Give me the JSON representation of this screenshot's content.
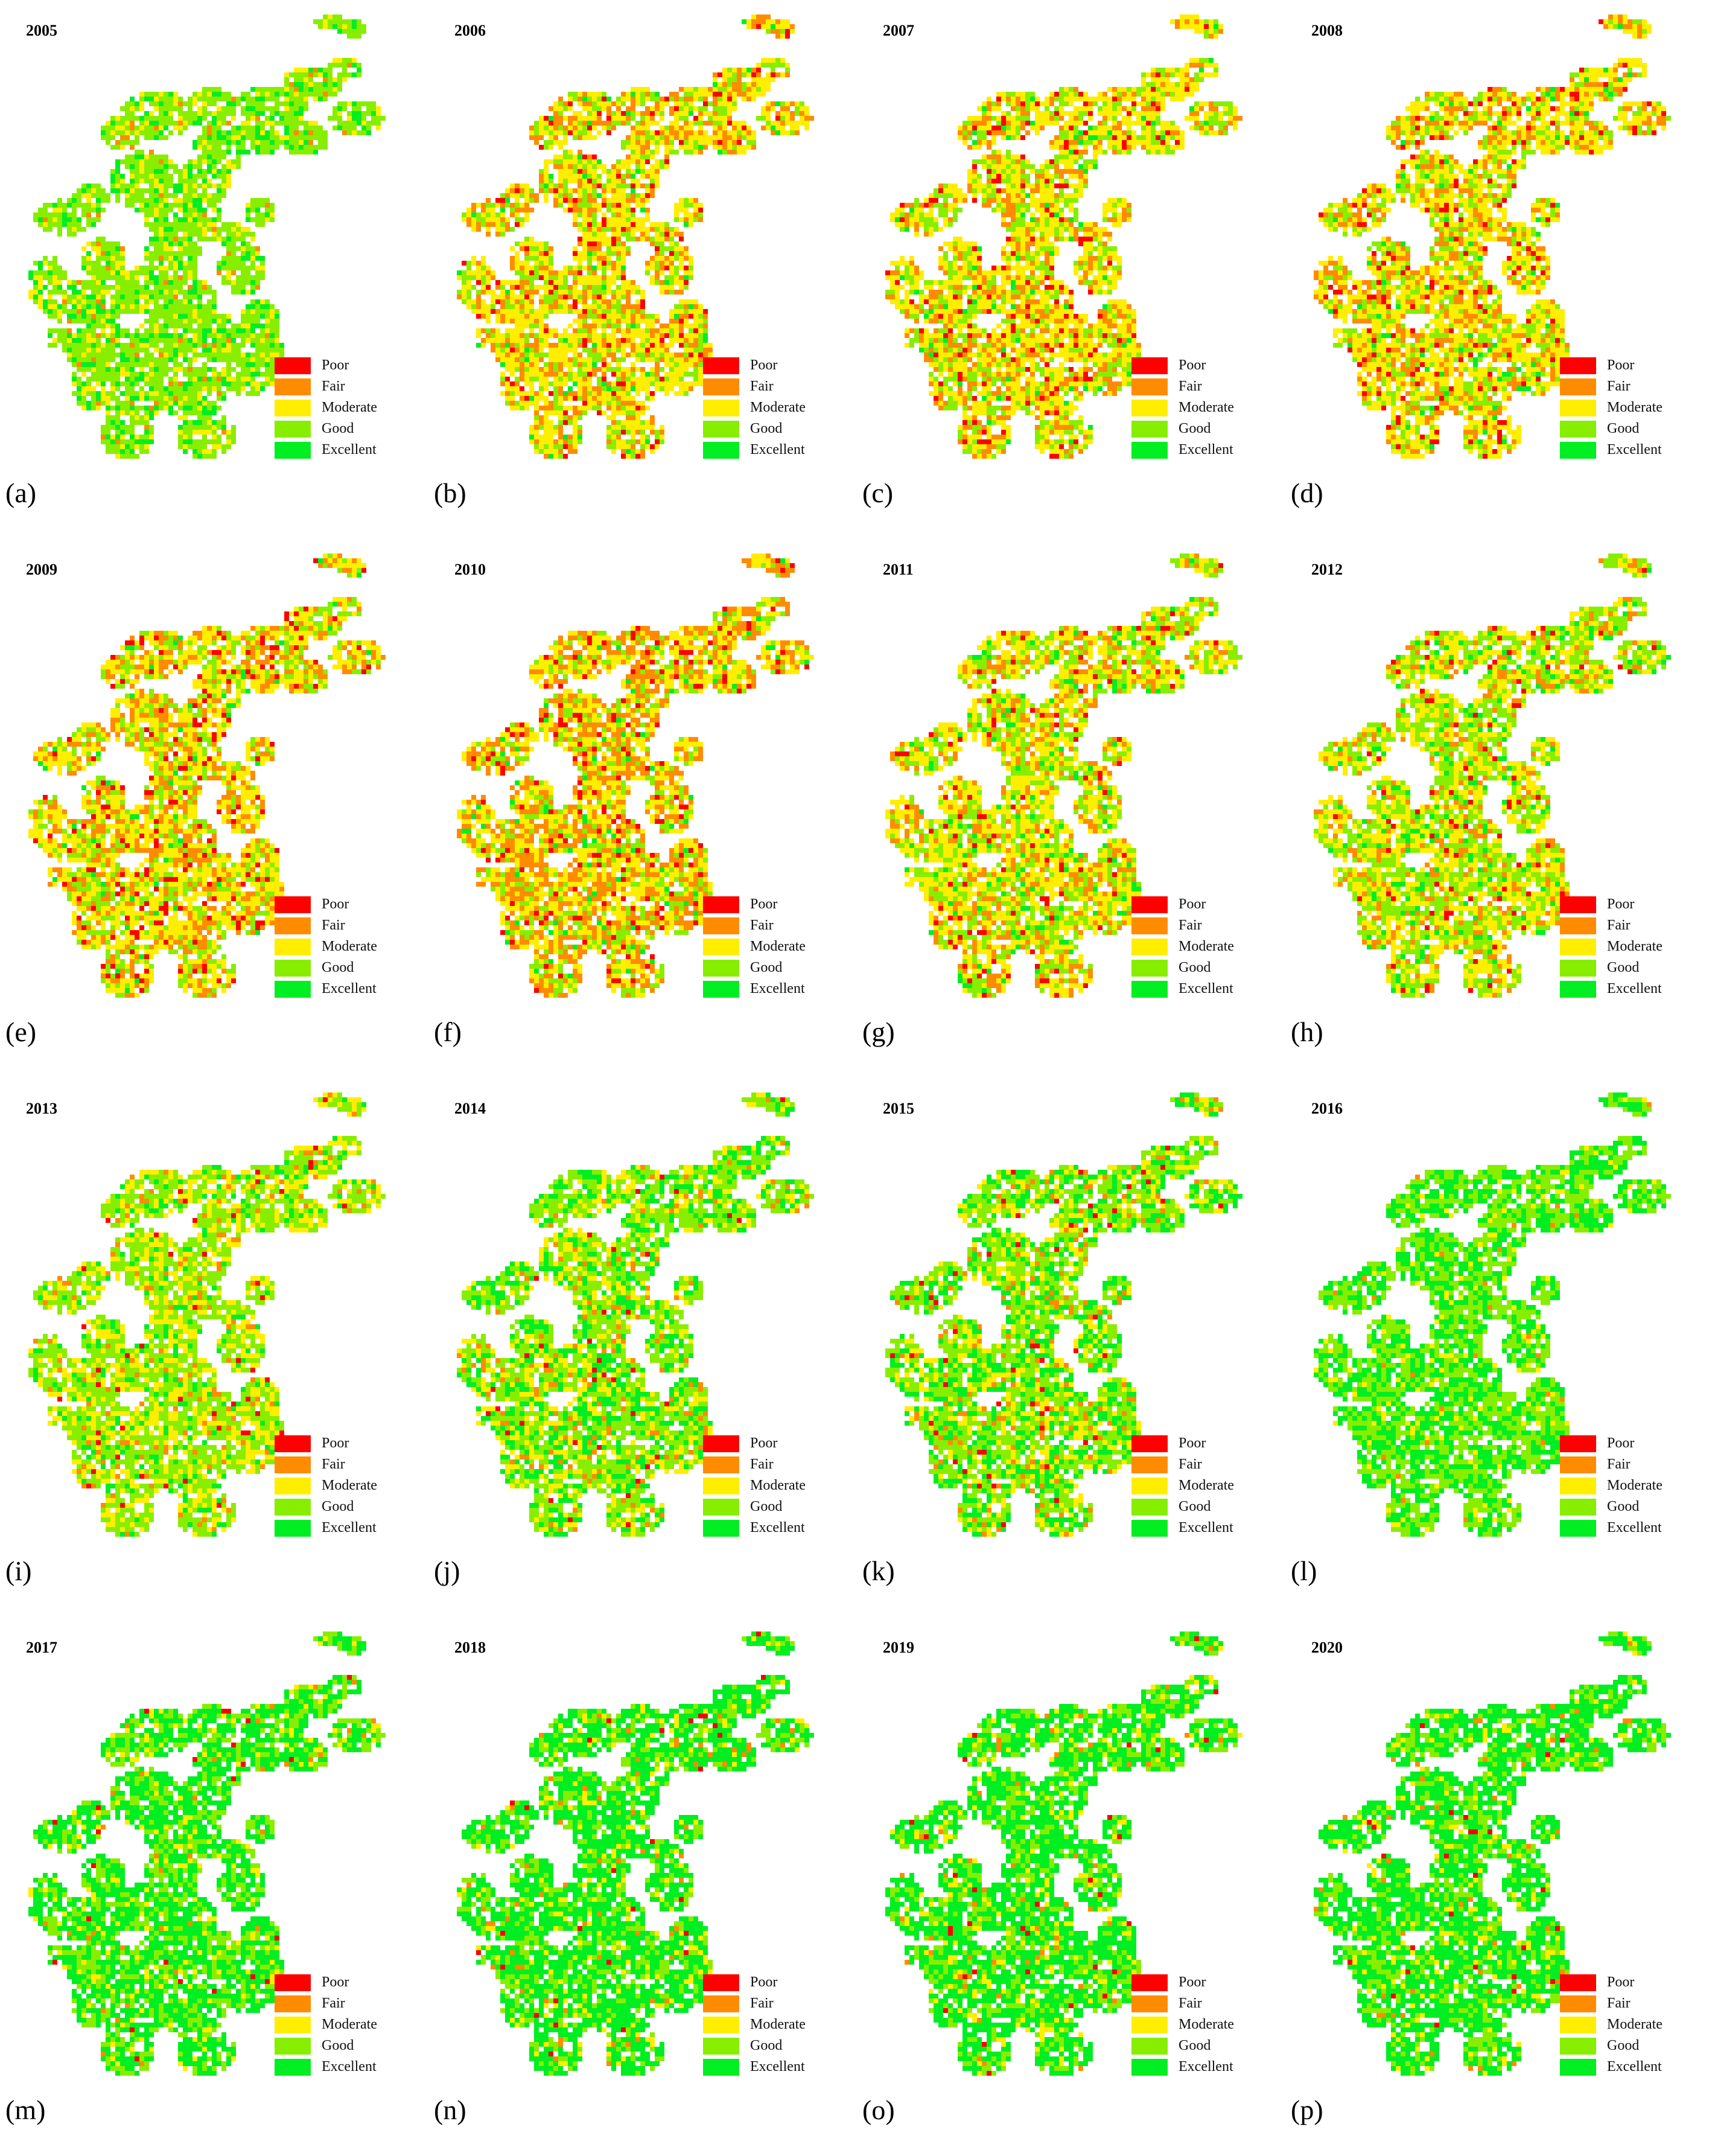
{
  "figure": {
    "panels": [
      {
        "letter": "(a)",
        "year": "2005",
        "tones": [
          0.0,
          0.03,
          0.18,
          0.62,
          0.17
        ]
      },
      {
        "letter": "(b)",
        "year": "2006",
        "tones": [
          0.06,
          0.22,
          0.47,
          0.22,
          0.03
        ]
      },
      {
        "letter": "(c)",
        "year": "2007",
        "tones": [
          0.06,
          0.2,
          0.48,
          0.23,
          0.03
        ]
      },
      {
        "letter": "(d)",
        "year": "2008",
        "tones": [
          0.07,
          0.22,
          0.46,
          0.22,
          0.03
        ]
      },
      {
        "letter": "(e)",
        "year": "2009",
        "tones": [
          0.08,
          0.24,
          0.42,
          0.23,
          0.03
        ]
      },
      {
        "letter": "(f)",
        "year": "2010",
        "tones": [
          0.08,
          0.34,
          0.36,
          0.19,
          0.03
        ]
      },
      {
        "letter": "(g)",
        "year": "2011",
        "tones": [
          0.05,
          0.18,
          0.4,
          0.31,
          0.06
        ]
      },
      {
        "letter": "(h)",
        "year": "2012",
        "tones": [
          0.03,
          0.12,
          0.38,
          0.39,
          0.08
        ]
      },
      {
        "letter": "(i)",
        "year": "2013",
        "tones": [
          0.02,
          0.06,
          0.32,
          0.5,
          0.1
        ]
      },
      {
        "letter": "(j)",
        "year": "2014",
        "tones": [
          0.02,
          0.06,
          0.22,
          0.44,
          0.26
        ]
      },
      {
        "letter": "(k)",
        "year": "2015",
        "tones": [
          0.02,
          0.06,
          0.2,
          0.44,
          0.28
        ]
      },
      {
        "letter": "(l)",
        "year": "2016",
        "tones": [
          0.0,
          0.01,
          0.06,
          0.48,
          0.45
        ]
      },
      {
        "letter": "(m)",
        "year": "2017",
        "tones": [
          0.01,
          0.02,
          0.08,
          0.3,
          0.59
        ]
      },
      {
        "letter": "(n)",
        "year": "2018",
        "tones": [
          0.01,
          0.02,
          0.08,
          0.26,
          0.63
        ]
      },
      {
        "letter": "(o)",
        "year": "2019",
        "tones": [
          0.01,
          0.02,
          0.08,
          0.28,
          0.61
        ]
      },
      {
        "letter": "(p)",
        "year": "2020",
        "tones": [
          0.01,
          0.02,
          0.07,
          0.26,
          0.64
        ]
      }
    ]
  },
  "legend": {
    "classes": [
      {
        "label": "Poor",
        "color": "#ff0000"
      },
      {
        "label": "Fair",
        "color": "#ff8c00"
      },
      {
        "label": "Moderate",
        "color": "#ffee00"
      },
      {
        "label": "Good",
        "color": "#88ee00"
      },
      {
        "label": "Excellent",
        "color": "#00ee22"
      }
    ]
  }
}
